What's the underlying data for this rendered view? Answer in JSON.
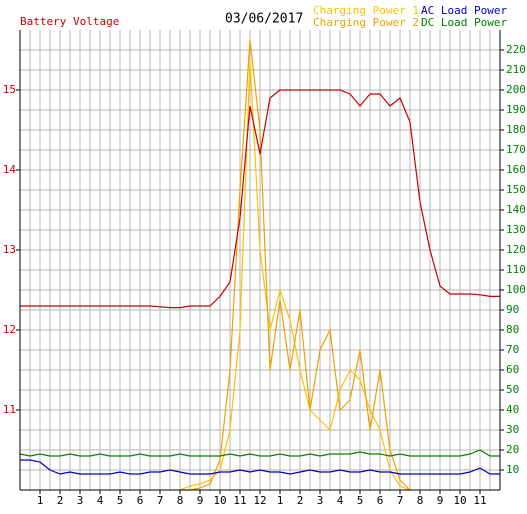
{
  "chart_data": {
    "type": "line",
    "title": "03/06/2017",
    "x": [
      0,
      0.5,
      1,
      1.5,
      2,
      2.5,
      3,
      3.5,
      4,
      4.5,
      5,
      5.5,
      6,
      6.5,
      7,
      7.5,
      8,
      8.5,
      9,
      9.5,
      10,
      10.5,
      11,
      11.5,
      12,
      12.5,
      13,
      13.5,
      14,
      14.5,
      15,
      15.5,
      16,
      16.5,
      17,
      17.5,
      18,
      18.5,
      19,
      19.5,
      20,
      20.5,
      21,
      21.5,
      22,
      22.5,
      23,
      23.5,
      24
    ],
    "xlim": [
      0,
      24
    ],
    "xticks": [
      1,
      2,
      3,
      4,
      5,
      6,
      7,
      8,
      9,
      10,
      11,
      12,
      {
        "value": 13,
        "label": "1"
      },
      {
        "value": 14,
        "label": "2"
      },
      {
        "value": 15,
        "label": "3"
      },
      {
        "value": 16,
        "label": "4"
      },
      {
        "value": 17,
        "label": "5"
      },
      {
        "value": 18,
        "label": "6"
      },
      {
        "value": 19,
        "label": "7"
      },
      {
        "value": 20,
        "label": "8"
      },
      {
        "value": 21,
        "label": "9"
      },
      {
        "value": 22,
        "label": "10"
      },
      {
        "value": 23,
        "label": "11"
      }
    ],
    "xminorticks": [
      0.5,
      1.5,
      2.5,
      3.5,
      4.5,
      5.5,
      6.5,
      7.5,
      8.5,
      9.5,
      10.5,
      11.5,
      12.5,
      13.5,
      14.5,
      15.5,
      16.5,
      17.5,
      18.5,
      19.5,
      20.5,
      21.5,
      22.5,
      23.5
    ],
    "ylim": [
      10,
      15.75
    ],
    "yticks": [
      11,
      12,
      13,
      14,
      15
    ],
    "ycolor": "#cc0000",
    "y2lim": [
      0,
      230
    ],
    "y2ticks": [
      10,
      20,
      30,
      40,
      50,
      60,
      70,
      80,
      90,
      100,
      110,
      120,
      130,
      140,
      150,
      160,
      170,
      180,
      190,
      200,
      210,
      220
    ],
    "y2color": "#008000",
    "grid": true,
    "series": [
      {
        "name": "Battery Voltage",
        "color": "#cc0000",
        "values": [
          12.3,
          12.3,
          12.3,
          12.3,
          12.3,
          12.3,
          12.3,
          12.3,
          12.3,
          12.3,
          12.3,
          12.3,
          12.3,
          12.3,
          12.29,
          12.28,
          12.28,
          12.3,
          12.3,
          12.3,
          12.42,
          12.6,
          13.4,
          14.8,
          14.2,
          14.9,
          15.0,
          15.0,
          15.0,
          15.0,
          15.0,
          15.0,
          15.0,
          14.95,
          14.8,
          14.95,
          14.95,
          14.8,
          14.9,
          14.6,
          13.6,
          13.0,
          12.55,
          12.45,
          12.45,
          12.45,
          12.44,
          12.42,
          12.42
        ]
      },
      {
        "name": "Charging Power 1",
        "color": "#ffc000",
        "axis": "y2",
        "values": [
          null,
          null,
          null,
          null,
          null,
          null,
          null,
          null,
          null,
          null,
          null,
          null,
          null,
          null,
          null,
          null,
          0,
          2,
          3,
          5,
          10,
          30,
          80,
          215,
          120,
          80,
          100,
          85,
          60,
          40,
          35,
          30,
          50,
          60,
          55,
          40,
          30,
          10,
          2,
          0,
          null,
          null,
          null,
          null,
          null,
          null,
          null,
          null,
          null
        ]
      },
      {
        "name": "Charging Power 2",
        "color": "#f0a000",
        "axis": "y2",
        "values": [
          null,
          null,
          null,
          null,
          null,
          null,
          null,
          null,
          null,
          null,
          null,
          null,
          null,
          null,
          null,
          null,
          0,
          0,
          1,
          3,
          15,
          60,
          150,
          225,
          180,
          60,
          95,
          60,
          90,
          40,
          70,
          80,
          40,
          45,
          70,
          30,
          60,
          20,
          5,
          0,
          null,
          null,
          null,
          null,
          null,
          null,
          null,
          null,
          null
        ]
      },
      {
        "name": "AC Load Power",
        "color": "#0000cc",
        "axis": "y2",
        "values": [
          15,
          15,
          14,
          10,
          8,
          9,
          8,
          8,
          8,
          8,
          9,
          8,
          8,
          9,
          9,
          10,
          9,
          8,
          8,
          8,
          9,
          9,
          10,
          9,
          10,
          9,
          9,
          8,
          9,
          10,
          9,
          9,
          10,
          9,
          9,
          10,
          9,
          9,
          8,
          8,
          8,
          8,
          8,
          8,
          8,
          9,
          11,
          8,
          8
        ]
      },
      {
        "name": "DC Load Power",
        "color": "#008000",
        "axis": "y2",
        "values": [
          18,
          17,
          18,
          17,
          17,
          18,
          17,
          17,
          18,
          17,
          17,
          17,
          18,
          17,
          17,
          17,
          18,
          17,
          17,
          17,
          17,
          18,
          17,
          18,
          17,
          17,
          18,
          17,
          17,
          18,
          17,
          18,
          18,
          18,
          19,
          18,
          18,
          17,
          18,
          17,
          17,
          17,
          17,
          17,
          17,
          18,
          20,
          17,
          17
        ]
      }
    ]
  }
}
